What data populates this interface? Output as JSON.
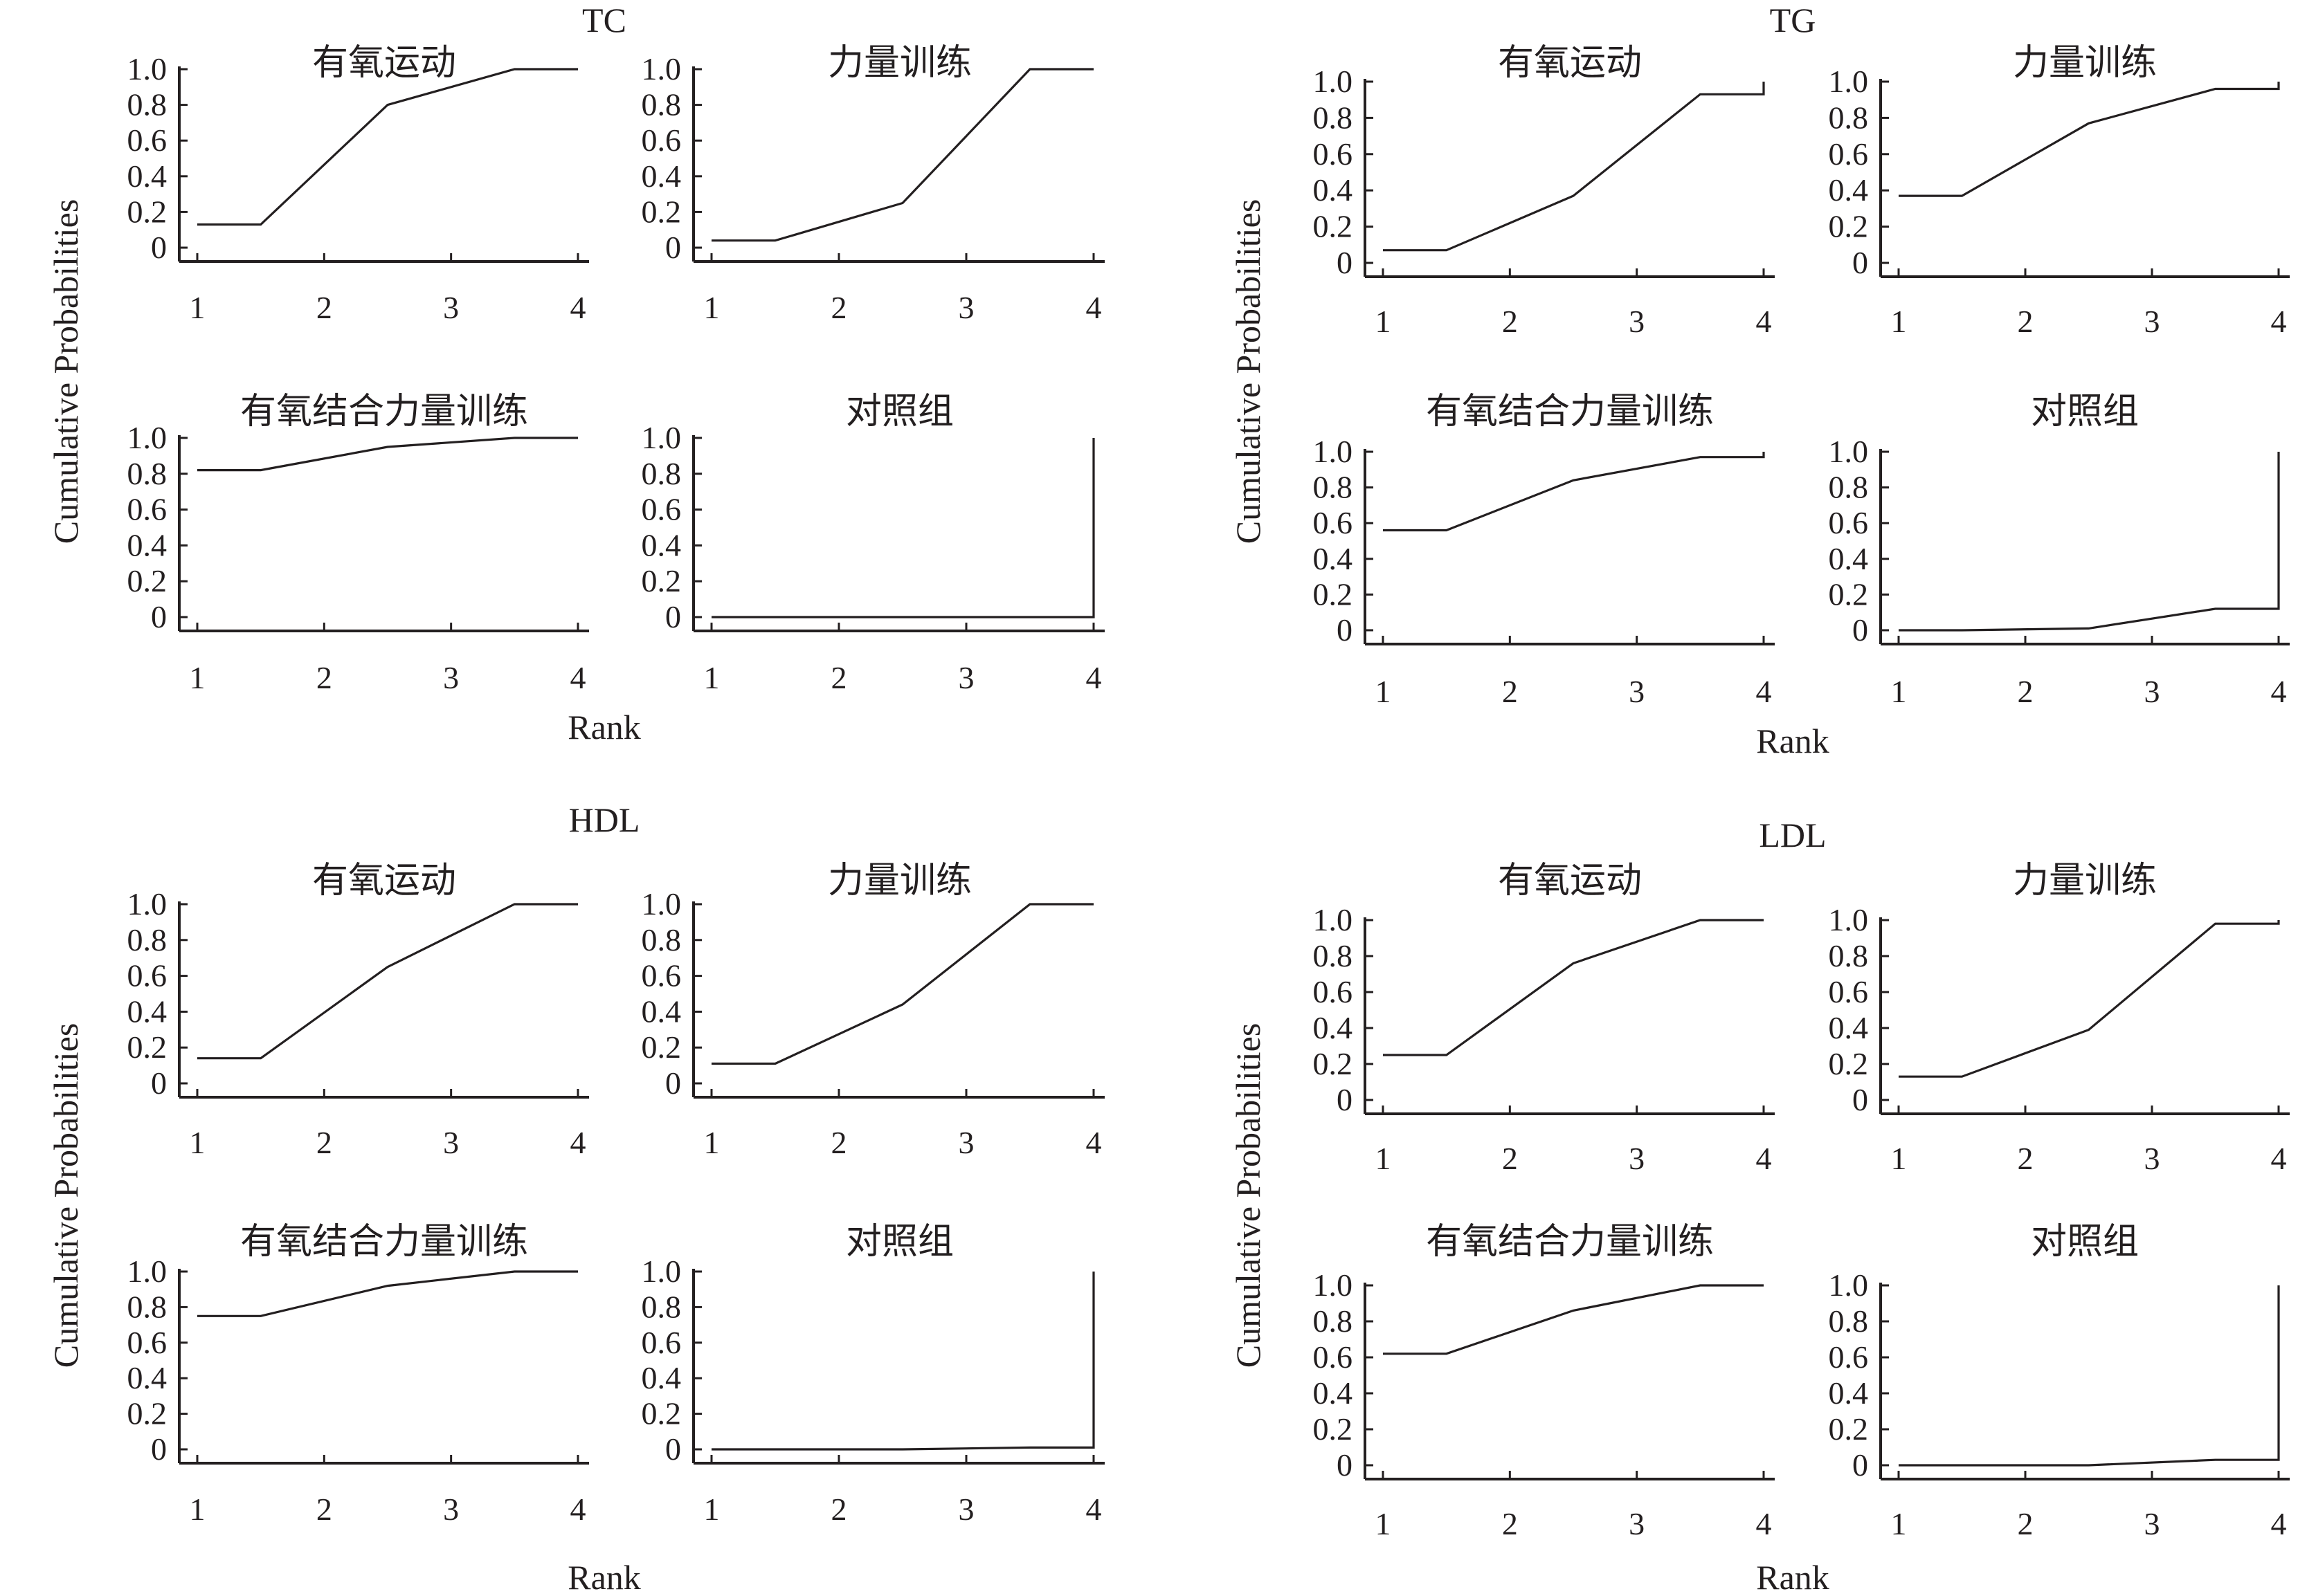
{
  "x_axis_label": "Rank",
  "y_axis_label": "Cumulative Probabilities",
  "chart_data": [
    {
      "type": "line",
      "group": "TC",
      "xlabel": "Rank",
      "ylabel": "Cumulative Probabilities",
      "x_ticks": [
        "1",
        "2",
        "3",
        "4"
      ],
      "y_ticks": [
        "0",
        "0.2",
        "0.4",
        "0.6",
        "0.8",
        "1.0"
      ],
      "xlim": [
        1,
        4
      ],
      "ylim": [
        0,
        1
      ],
      "grid": false,
      "panels": [
        {
          "title": "有氧运动",
          "x": [
            1,
            1.5,
            2.5,
            3.5,
            4
          ],
          "y": [
            0.13,
            0.13,
            0.8,
            1.0,
            1.0
          ]
        },
        {
          "title": "力量训练",
          "x": [
            1,
            1.5,
            2.5,
            3.5,
            4
          ],
          "y": [
            0.04,
            0.04,
            0.25,
            1.0,
            1.0
          ]
        },
        {
          "title": "有氧结合力量训练",
          "x": [
            1,
            1.5,
            2.5,
            3.5,
            4
          ],
          "y": [
            0.82,
            0.82,
            0.95,
            1.0,
            1.0
          ]
        },
        {
          "title": "对照组",
          "x": [
            1,
            1.5,
            2.5,
            3.5,
            4,
            4
          ],
          "y": [
            0.0,
            0.0,
            0.0,
            0.0,
            0.0,
            1.0
          ]
        }
      ]
    },
    {
      "type": "line",
      "group": "TG",
      "xlabel": "Rank",
      "ylabel": "Cumulative Probabilities",
      "x_ticks": [
        "1",
        "2",
        "3",
        "4"
      ],
      "y_ticks": [
        "0",
        "0.2",
        "0.4",
        "0.6",
        "0.8",
        "1.0"
      ],
      "xlim": [
        1,
        4
      ],
      "ylim": [
        0,
        1
      ],
      "grid": false,
      "panels": [
        {
          "title": "有氧运动",
          "x": [
            1,
            1.5,
            2.5,
            3.5,
            4,
            4
          ],
          "y": [
            0.07,
            0.07,
            0.37,
            0.93,
            0.93,
            1.0
          ]
        },
        {
          "title": "力量训练",
          "x": [
            1,
            1.5,
            2.5,
            3.5,
            4,
            4
          ],
          "y": [
            0.37,
            0.37,
            0.77,
            0.96,
            0.96,
            1.0
          ]
        },
        {
          "title": "有氧结合力量训练",
          "x": [
            1,
            1.5,
            2.5,
            3.5,
            4,
            4
          ],
          "y": [
            0.56,
            0.56,
            0.84,
            0.97,
            0.97,
            1.0
          ]
        },
        {
          "title": "对照组",
          "x": [
            1,
            1.5,
            2.5,
            3.5,
            4,
            4
          ],
          "y": [
            0.0,
            0.0,
            0.01,
            0.12,
            0.12,
            1.0
          ]
        }
      ]
    },
    {
      "type": "line",
      "group": "HDL",
      "xlabel": "Rank",
      "ylabel": "Cumulative Probabilities",
      "x_ticks": [
        "1",
        "2",
        "3",
        "4"
      ],
      "y_ticks": [
        "0",
        "0.2",
        "0.4",
        "0.6",
        "0.8",
        "1.0"
      ],
      "xlim": [
        1,
        4
      ],
      "ylim": [
        0,
        1
      ],
      "grid": false,
      "panels": [
        {
          "title": "有氧运动",
          "x": [
            1,
            1.5,
            2.5,
            3.5,
            4
          ],
          "y": [
            0.14,
            0.14,
            0.65,
            1.0,
            1.0
          ]
        },
        {
          "title": "力量训练",
          "x": [
            1,
            1.5,
            2.5,
            3.5,
            4
          ],
          "y": [
            0.11,
            0.11,
            0.44,
            1.0,
            1.0
          ]
        },
        {
          "title": "有氧结合力量训练",
          "x": [
            1,
            1.5,
            2.5,
            3.5,
            4
          ],
          "y": [
            0.75,
            0.75,
            0.92,
            1.0,
            1.0
          ]
        },
        {
          "title": "对照组",
          "x": [
            1,
            1.5,
            2.5,
            3.5,
            4,
            4
          ],
          "y": [
            0.0,
            0.0,
            0.0,
            0.01,
            0.01,
            1.0
          ]
        }
      ]
    },
    {
      "type": "line",
      "group": "LDL",
      "xlabel": "Rank",
      "ylabel": "Cumulative Probabilities",
      "x_ticks": [
        "1",
        "2",
        "3",
        "4"
      ],
      "y_ticks": [
        "0",
        "0.2",
        "0.4",
        "0.6",
        "0.8",
        "1.0"
      ],
      "xlim": [
        1,
        4
      ],
      "ylim": [
        0,
        1
      ],
      "grid": false,
      "panels": [
        {
          "title": "有氧运动",
          "x": [
            1,
            1.5,
            2.5,
            3.5,
            4
          ],
          "y": [
            0.25,
            0.25,
            0.76,
            1.0,
            1.0
          ]
        },
        {
          "title": "力量训练",
          "x": [
            1,
            1.5,
            2.5,
            3.5,
            4,
            4
          ],
          "y": [
            0.13,
            0.13,
            0.39,
            0.98,
            0.98,
            1.0
          ]
        },
        {
          "title": "有氧结合力量训练",
          "x": [
            1,
            1.5,
            2.5,
            3.5,
            4
          ],
          "y": [
            0.62,
            0.62,
            0.86,
            1.0,
            1.0
          ]
        },
        {
          "title": "对照组",
          "x": [
            1,
            1.5,
            2.5,
            3.5,
            4,
            4
          ],
          "y": [
            0.0,
            0.0,
            0.0,
            0.03,
            0.03,
            1.0
          ]
        }
      ]
    }
  ]
}
